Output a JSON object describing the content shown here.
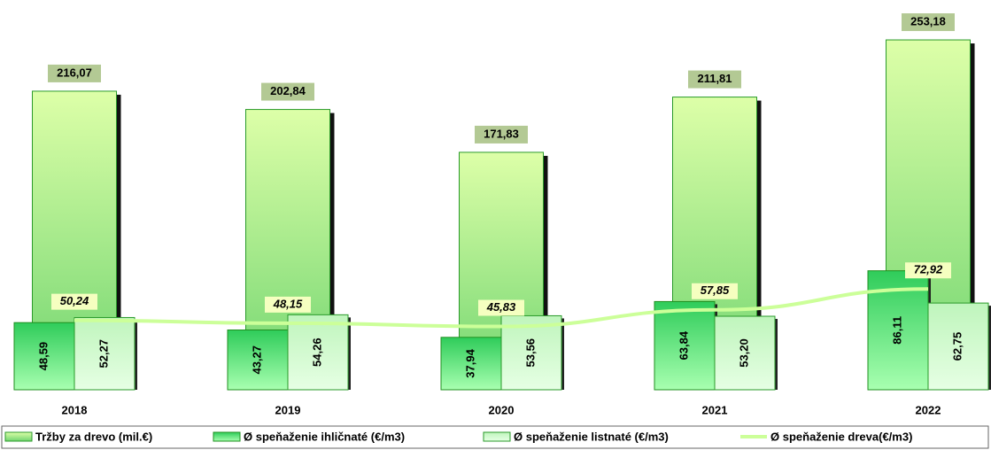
{
  "chart_data": {
    "type": "bar",
    "categories": [
      "2018",
      "2019",
      "2020",
      "2021",
      "2022"
    ],
    "series": [
      {
        "name": "Tržby za drevo (mil.€)",
        "color": "#b8f07a",
        "values": [
          216.07,
          202.84,
          171.83,
          211.81,
          253.18
        ],
        "value_labels": [
          "216,07",
          "202,84",
          "171,83",
          "211,81",
          "253,18"
        ]
      },
      {
        "name": "Ø speňaženie ihličnaté (€/m3)",
        "color": "#4fd86a",
        "values": [
          48.59,
          43.27,
          37.94,
          63.84,
          86.11
        ],
        "value_labels": [
          "48,59",
          "43,27",
          "37,94",
          "63,84",
          "86,11"
        ]
      },
      {
        "name": "Ø speňaženie listnaté (€/m3)",
        "color": "#c8f7c4",
        "values": [
          52.27,
          54.26,
          53.56,
          53.2,
          62.75
        ],
        "value_labels": [
          "52,27",
          "54,26",
          "53,56",
          "53,20",
          "62,75"
        ]
      },
      {
        "name": "Ø speňaženie dreva(€/m3)",
        "type": "line",
        "color": "#ccff99",
        "values": [
          50.24,
          48.15,
          45.83,
          57.85,
          72.92
        ],
        "value_labels": [
          "50,24",
          "48,15",
          "45,83",
          "57,85",
          "72,92"
        ]
      }
    ],
    "legend": "bottom"
  }
}
